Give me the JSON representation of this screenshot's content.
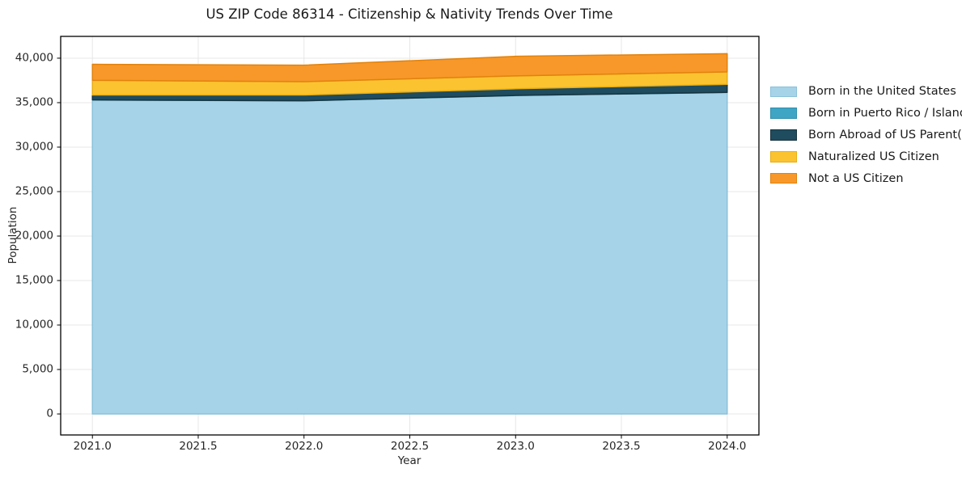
{
  "title": "US ZIP Code 86314 - Citizenship & Nativity Trends Over Time",
  "chart_data": {
    "type": "area",
    "stacked": true,
    "title": "US ZIP Code 86314 - Citizenship & Nativity Trends Over Time",
    "xlabel": "Year",
    "ylabel": "Population",
    "x": [
      2021,
      2022,
      2023,
      2024
    ],
    "series": [
      {
        "name": "Born in the United States",
        "color": "#a6d3e8",
        "edge_color": "#8ac1da",
        "values": [
          35300,
          35200,
          35800,
          36150
        ]
      },
      {
        "name": "Born in Puerto Rico / Islands",
        "color": "#3fa5c4",
        "edge_color": "#2f8fad",
        "values": [
          10,
          10,
          10,
          10
        ]
      },
      {
        "name": "Born Abroad of US Parent(s)",
        "color": "#1f4c5e",
        "edge_color": "#15333f",
        "values": [
          550,
          650,
          750,
          900
        ]
      },
      {
        "name": "Naturalized US Citizen",
        "color": "#fcc330",
        "edge_color": "#e9ae12",
        "values": [
          1650,
          1500,
          1450,
          1400
        ]
      },
      {
        "name": "Not a US Citizen",
        "color": "#f8982a",
        "edge_color": "#e1820c",
        "values": [
          1800,
          1850,
          2200,
          2050
        ]
      }
    ],
    "xlim": [
      2020.85,
      2024.15
    ],
    "ylim": [
      -2360,
      42450
    ],
    "x_tick_values": [
      2021.0,
      2021.5,
      2022.0,
      2022.5,
      2023.0,
      2023.5,
      2024.0
    ],
    "x_tick_labels": [
      "2021.0",
      "2021.5",
      "2022.0",
      "2022.5",
      "2023.0",
      "2023.5",
      "2024.0"
    ],
    "y_tick_values": [
      0,
      5000,
      10000,
      15000,
      20000,
      25000,
      30000,
      35000,
      40000
    ],
    "y_tick_labels": [
      "0",
      "5,000",
      "10,000",
      "15,000",
      "20,000",
      "25,000",
      "30,000",
      "35,000",
      "40,000"
    ],
    "grid": true,
    "grid_color": "#e7e7e7",
    "spine_color": "#000000",
    "legend_position": "right-outside",
    "legend_frame": false
  }
}
